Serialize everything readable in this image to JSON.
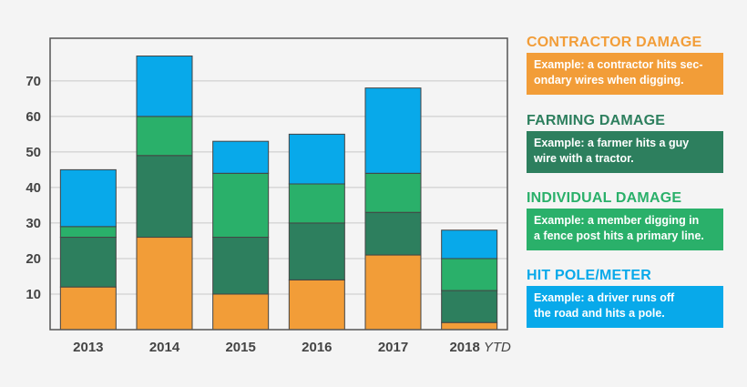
{
  "chart_data": {
    "type": "bar",
    "stacked": true,
    "categories": [
      "2013",
      "2014",
      "2015",
      "2016",
      "2017",
      "2018"
    ],
    "category_suffix": {
      "2018": "YTD"
    },
    "series": [
      {
        "key": "contractor",
        "color": "#f29d38",
        "values": [
          12,
          26,
          10,
          14,
          21,
          2
        ]
      },
      {
        "key": "farming",
        "color": "#2d7f5e",
        "values": [
          14,
          23,
          16,
          16,
          12,
          9
        ]
      },
      {
        "key": "individual",
        "color": "#2ab06a",
        "values": [
          3,
          11,
          18,
          11,
          11,
          9
        ]
      },
      {
        "key": "hit_pole",
        "color": "#08a9ea",
        "values": [
          16,
          17,
          9,
          14,
          24,
          8
        ]
      }
    ],
    "yticks": [
      10,
      20,
      30,
      40,
      50,
      60,
      70
    ],
    "ylim": [
      0,
      82
    ],
    "grid": true
  },
  "legend": [
    {
      "title": "CONTRACTOR DAMAGE",
      "color": "#f29d38",
      "line1": "Example: a contractor hits sec-",
      "line2": "ondary wires when digging."
    },
    {
      "title": "FARMING DAMAGE",
      "color": "#2d7f5e",
      "line1": "Example: a farmer hits a guy",
      "line2": "wire with a tractor."
    },
    {
      "title": "INDIVIDUAL DAMAGE",
      "color": "#2ab06a",
      "line1": "Example: a member digging in",
      "line2": "a fence post hits a primary line."
    },
    {
      "title": "HIT POLE/METER",
      "color": "#08a9ea",
      "line1": "Example: a driver runs off",
      "line2": "the road and hits a pole."
    }
  ]
}
